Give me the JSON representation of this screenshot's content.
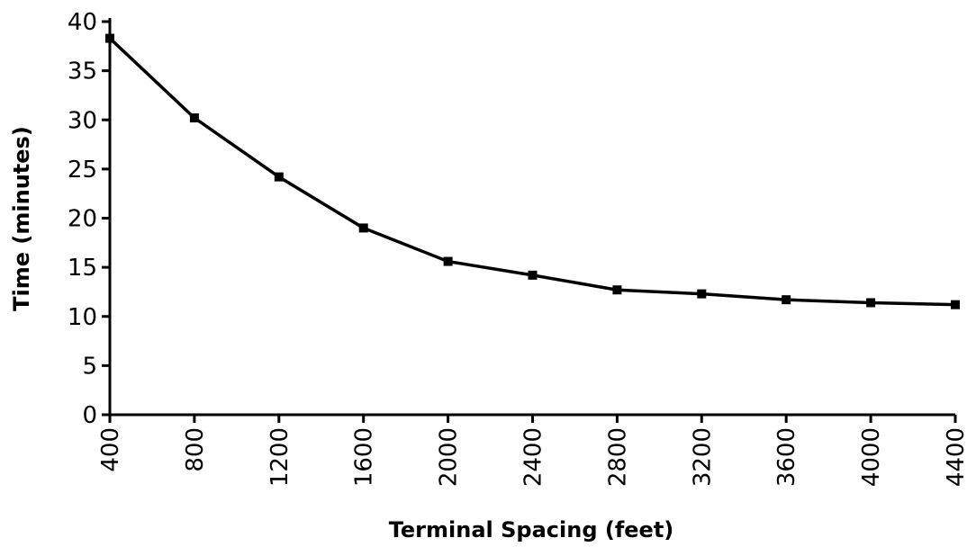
{
  "chart_data": {
    "type": "line",
    "x_label": "Terminal Spacing (feet)",
    "y_label": "Time (minutes)",
    "x": [
      400,
      800,
      1200,
      1600,
      2000,
      2400,
      2800,
      3200,
      3600,
      4000,
      4400
    ],
    "series": [
      {
        "color": "#000000",
        "values": [
          38.3,
          30.2,
          24.2,
          19.0,
          15.6,
          14.2,
          12.7,
          12.3,
          11.7,
          11.4,
          11.2
        ]
      }
    ],
    "xlim": [
      400,
      4400
    ],
    "xticks": [
      400,
      800,
      1200,
      1600,
      2000,
      2400,
      2800,
      3200,
      3600,
      4000,
      4400
    ],
    "ylim": [
      0,
      40
    ],
    "yticks": [
      0,
      5,
      10,
      15,
      20,
      25,
      30,
      35,
      40
    ],
    "grid": false
  }
}
